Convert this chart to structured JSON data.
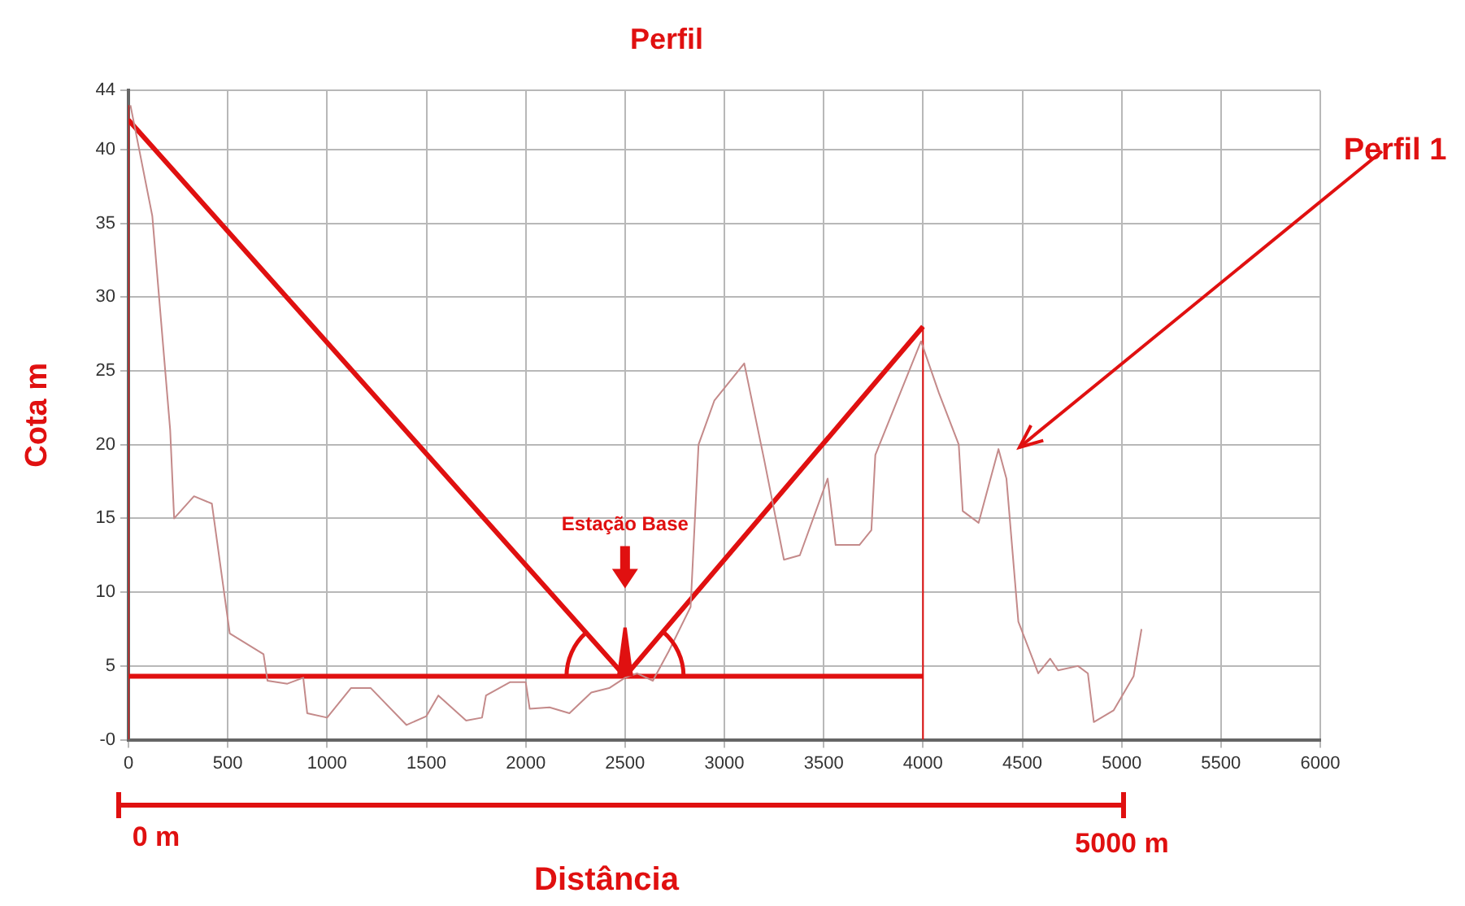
{
  "chart_data": {
    "type": "line",
    "title": "Perfil",
    "xlabel": "Distância",
    "ylabel": "Cota m",
    "xlim": [
      0,
      6000
    ],
    "xticks": [
      0,
      500,
      1000,
      1500,
      2000,
      2500,
      3000,
      3500,
      4000,
      4500,
      5000,
      5500,
      6000
    ],
    "ylim": [
      0,
      44
    ],
    "yticks": [
      {
        "value": 0,
        "label": "-0"
      },
      5,
      10,
      15,
      20,
      25,
      30,
      35,
      40,
      44
    ],
    "grid": true,
    "legend": false,
    "marker": "none",
    "line_style": "solid",
    "annotations": [
      "Perfil 1",
      "Estação Base",
      "0 m",
      "5000 m"
    ],
    "series": [
      {
        "color": "#c48a8a",
        "x": [
          10,
          120,
          210,
          230,
          330,
          420,
          510,
          680,
          700,
          800,
          880,
          900,
          1000,
          1120,
          1220,
          1400,
          1500,
          1560,
          1700,
          1780,
          1800,
          1920,
          2000,
          2020,
          2120,
          2220,
          2330,
          2420,
          2500,
          2560,
          2640,
          2720,
          2830,
          2870,
          2950,
          3100,
          3200,
          3300,
          3380,
          3520,
          3560,
          3680,
          3740,
          3760,
          3990,
          4080,
          4180,
          4200,
          4280,
          4380,
          4420,
          4480,
          4580,
          4640,
          4680,
          4780,
          4830,
          4860,
          4960,
          5060,
          5100
        ],
        "values": [
          43,
          35.5,
          21,
          15,
          16.5,
          16,
          7.2,
          5.8,
          4,
          3.8,
          4.2,
          1.8,
          1.5,
          3.5,
          3.5,
          1,
          1.6,
          3,
          1.3,
          1.5,
          3,
          3.9,
          3.9,
          2.1,
          2.2,
          1.8,
          3.2,
          3.5,
          4.2,
          4.5,
          4,
          6,
          9,
          20,
          23,
          25.5,
          19,
          12.2,
          12.5,
          17.7,
          13.2,
          13.2,
          14.2,
          19.3,
          27,
          23.5,
          20,
          15.5,
          14.7,
          19.7,
          17.7,
          8,
          4.5,
          5.5,
          4.7,
          5,
          4.5,
          1.2,
          2,
          4.3,
          7.5
        ]
      },
      {
        "color": "#e01010",
        "x": [
          0,
          2500,
          4000
        ],
        "values": [
          42,
          4.3,
          28
        ]
      },
      {
        "color": "#e01010",
        "x": [
          0,
          4000
        ],
        "values": [
          4.3,
          4.3
        ]
      },
      {
        "color": "#e01010",
        "x": [
          0,
          0
        ],
        "values": [
          0,
          43
        ]
      },
      {
        "color": "#e01010",
        "x": [
          4000,
          4000
        ],
        "values": [
          0,
          28
        ]
      }
    ]
  }
}
